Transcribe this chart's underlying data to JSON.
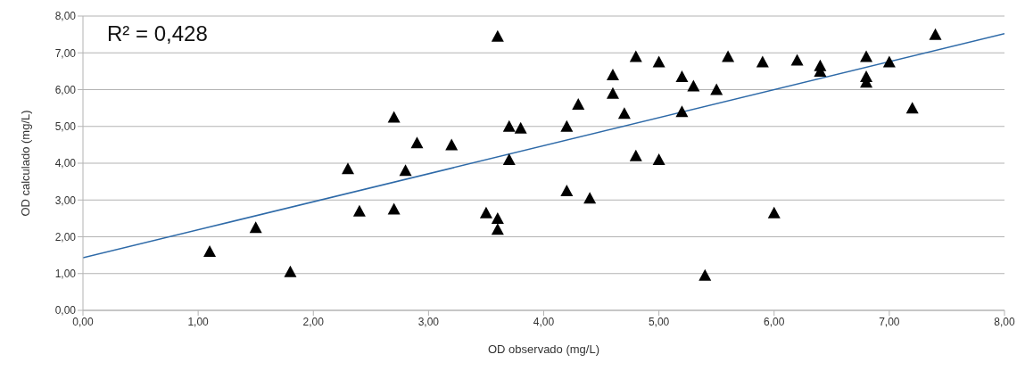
{
  "chart_data": {
    "type": "scatter",
    "xlabel": "OD observado (mg/L)",
    "ylabel": "OD calculado (mg/L)",
    "annotations": [
      "R² = 0,428"
    ],
    "xlim": [
      0,
      8
    ],
    "ylim": [
      0,
      8
    ],
    "xticks": [
      {
        "value": 0,
        "label": "0,00"
      },
      {
        "value": 1,
        "label": "1,00"
      },
      {
        "value": 2,
        "label": "2,00"
      },
      {
        "value": 3,
        "label": "3,00"
      },
      {
        "value": 4,
        "label": "4,00"
      },
      {
        "value": 5,
        "label": "5,00"
      },
      {
        "value": 6,
        "label": "6,00"
      },
      {
        "value": 7,
        "label": "7,00"
      },
      {
        "value": 8,
        "label": "8,00"
      }
    ],
    "yticks": [
      {
        "value": 0,
        "label": "0,00"
      },
      {
        "value": 1,
        "label": "1,00"
      },
      {
        "value": 2,
        "label": "2,00"
      },
      {
        "value": 3,
        "label": "3,00"
      },
      {
        "value": 4,
        "label": "4,00"
      },
      {
        "value": 5,
        "label": "5,00"
      },
      {
        "value": 6,
        "label": "6,00"
      },
      {
        "value": 7,
        "label": "7,00"
      },
      {
        "value": 8,
        "label": "8,00"
      }
    ],
    "grid": "y",
    "legend": false,
    "series": [
      {
        "color": "#000000",
        "marker": "triangle",
        "x": [
          1.1,
          1.5,
          1.8,
          2.3,
          2.4,
          2.7,
          2.7,
          2.8,
          2.9,
          3.2,
          3.5,
          3.6,
          3.6,
          3.6,
          3.7,
          3.7,
          3.8,
          4.2,
          4.2,
          4.3,
          4.4,
          4.6,
          4.6,
          4.7,
          4.8,
          4.8,
          5.0,
          5.0,
          5.2,
          5.2,
          5.3,
          5.4,
          5.5,
          5.6,
          5.9,
          6.0,
          6.2,
          6.4,
          6.4,
          6.8,
          6.8,
          6.8,
          7.0,
          7.2,
          7.4
        ],
        "values": [
          1.6,
          2.25,
          1.05,
          3.85,
          2.7,
          5.25,
          2.75,
          3.8,
          4.55,
          4.5,
          2.65,
          7.45,
          2.5,
          2.2,
          5.0,
          4.1,
          4.95,
          5.0,
          3.25,
          5.6,
          3.05,
          6.4,
          5.9,
          5.35,
          6.9,
          4.2,
          6.75,
          4.1,
          6.35,
          5.4,
          6.1,
          0.95,
          6.0,
          6.9,
          6.75,
          2.65,
          6.8,
          6.65,
          6.5,
          6.9,
          6.35,
          6.2,
          6.75,
          5.5,
          7.5
        ]
      },
      {
        "type": "line",
        "color": "#2e6aa8",
        "x": [
          0,
          8
        ],
        "values": [
          1.43,
          7.52
        ]
      }
    ]
  }
}
